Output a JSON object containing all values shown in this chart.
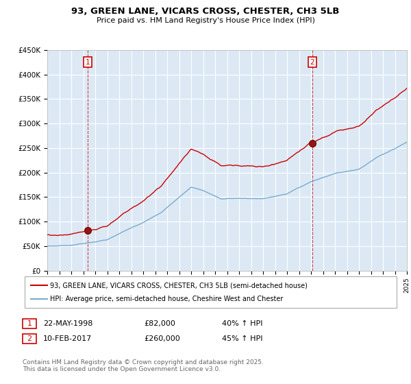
{
  "title_line1": "93, GREEN LANE, VICARS CROSS, CHESTER, CH3 5LB",
  "title_line2": "Price paid vs. HM Land Registry's House Price Index (HPI)",
  "x_start_year": 1995,
  "x_end_year": 2025,
  "y_min": 0,
  "y_max": 450000,
  "y_ticks": [
    0,
    50000,
    100000,
    150000,
    200000,
    250000,
    300000,
    350000,
    400000,
    450000
  ],
  "y_tick_labels": [
    "£0",
    "£50K",
    "£100K",
    "£150K",
    "£200K",
    "£250K",
    "£300K",
    "£350K",
    "£400K",
    "£450K"
  ],
  "sale1_year": 1998.38,
  "sale1_price": 82000,
  "sale2_year": 2017.1,
  "sale2_price": 260000,
  "line_color_property": "#cc0000",
  "line_color_hpi": "#7aabcc",
  "vline_color": "#cc0000",
  "bg_color": "#dce9f5",
  "plot_bg_color": "#dce9f5",
  "legend_label_property": "93, GREEN LANE, VICARS CROSS, CHESTER, CH3 5LB (semi-detached house)",
  "legend_label_hpi": "HPI: Average price, semi-detached house, Cheshire West and Chester",
  "table_row1": [
    "1",
    "22-MAY-1998",
    "£82,000",
    "40% ↑ HPI"
  ],
  "table_row2": [
    "2",
    "10-FEB-2017",
    "£260,000",
    "45% ↑ HPI"
  ],
  "footnote": "Contains HM Land Registry data © Crown copyright and database right 2025.\nThis data is licensed under the Open Government Licence v3.0."
}
